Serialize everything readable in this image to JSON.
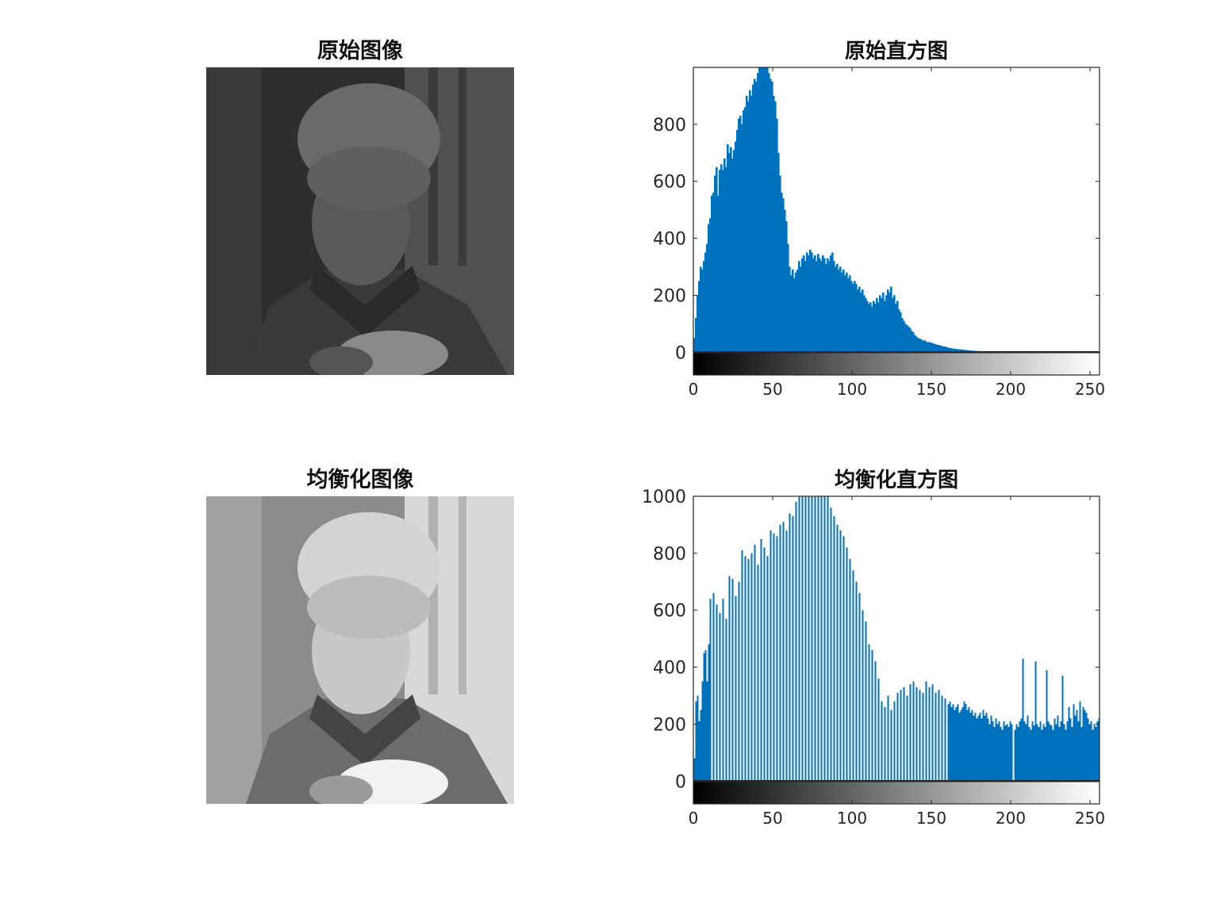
{
  "figure": {
    "panels": {
      "original_image": {
        "title": "原始图像",
        "content": "grayscale portrait, low contrast (dark)"
      },
      "original_histogram": {
        "title": "原始直方图"
      },
      "equalized_image": {
        "title": "均衡化图像",
        "content": "grayscale portrait, histogram equalized (high contrast)"
      },
      "equalized_histogram": {
        "title": "均衡化直方图"
      }
    }
  },
  "colors": {
    "bar": "#0072bd",
    "axis": "#262626",
    "background": "#ffffff"
  },
  "chart_data": [
    {
      "type": "bar",
      "title": "原始直方图",
      "xlabel": "",
      "ylabel": "",
      "xlim": [
        0,
        256
      ],
      "ylim": [
        -80,
        1000
      ],
      "yticks": [
        0,
        200,
        400,
        600,
        800
      ],
      "xticks": [
        0,
        50,
        100,
        150,
        200,
        250
      ],
      "grid": false,
      "colorbar": "grayscale gradient from black (0) to white (255) below the axis",
      "series": [
        {
          "values": [
            50,
            120,
            200,
            250,
            300,
            290,
            320,
            350,
            380,
            450,
            470,
            550,
            560,
            620,
            650,
            550,
            640,
            660,
            640,
            680,
            650,
            730,
            700,
            720,
            680,
            710,
            740,
            780,
            820,
            830,
            800,
            850,
            860,
            900,
            880,
            920,
            900,
            940,
            960,
            950,
            980,
            1000,
            1000,
            1000,
            1000,
            1000,
            1000,
            980,
            960,
            950,
            900,
            880,
            820,
            700,
            620,
            560,
            540,
            500,
            460,
            380,
            300,
            270,
            290,
            260,
            280,
            290,
            320,
            300,
            330,
            340,
            320,
            350,
            340,
            360,
            350,
            330,
            340,
            320,
            345,
            330,
            320,
            340,
            330,
            310,
            330,
            320,
            340,
            350,
            320,
            300,
            310,
            290,
            300,
            280,
            290,
            270,
            280,
            260,
            270,
            250,
            240,
            250,
            240,
            220,
            230,
            210,
            220,
            200,
            190,
            180,
            170,
            175,
            160,
            180,
            170,
            190,
            175,
            200,
            190,
            210,
            180,
            200,
            220,
            210,
            230,
            190,
            200,
            170,
            180,
            150,
            140,
            120,
            110,
            100,
            95,
            90,
            85,
            75,
            70,
            60,
            55,
            50,
            48,
            45,
            40,
            42,
            38,
            35,
            36,
            34,
            32,
            30,
            28,
            26,
            25,
            24,
            22,
            20,
            20,
            18,
            16,
            15,
            14,
            13,
            12,
            12,
            11,
            10,
            10,
            9,
            8,
            8,
            7,
            6,
            6,
            5,
            5,
            5,
            4,
            4,
            4,
            3,
            3,
            3,
            3,
            2,
            2,
            2,
            2,
            2,
            2,
            2,
            1,
            1,
            1,
            1,
            1,
            1,
            1,
            1,
            1,
            1,
            1,
            1,
            1,
            1,
            1,
            1,
            1,
            1,
            1,
            1,
            1,
            1,
            1,
            1,
            1,
            1,
            1,
            1,
            1,
            1,
            1,
            1,
            1,
            1,
            1,
            1,
            1,
            1,
            1,
            1,
            1,
            1,
            1,
            1,
            1,
            1,
            1,
            1,
            1,
            1,
            1,
            1,
            1,
            1,
            1,
            1,
            1,
            1,
            1,
            1,
            1,
            1,
            1,
            1
          ]
        }
      ]
    },
    {
      "type": "bar",
      "title": "均衡化直方图",
      "xlabel": "",
      "ylabel": "",
      "xlim": [
        0,
        256
      ],
      "ylim": [
        -80,
        1000
      ],
      "yticks": [
        0,
        200,
        400,
        600,
        800,
        1000
      ],
      "xticks": [
        0,
        50,
        100,
        150,
        200,
        250
      ],
      "grid": false,
      "colorbar": "grayscale gradient from black (0) to white (255) below the axis",
      "series": [
        {
          "x": [
            0,
            1,
            2,
            3,
            4,
            5,
            6,
            7,
            8,
            9,
            10,
            12,
            14,
            16,
            18,
            20,
            22,
            24,
            26,
            28,
            30,
            32,
            34,
            36,
            38,
            40,
            42,
            44,
            46,
            48,
            50,
            52,
            54,
            56,
            58,
            60,
            62,
            64,
            66,
            68,
            70,
            72,
            74,
            76,
            78,
            80,
            82,
            84,
            86,
            88,
            90,
            92,
            94,
            96,
            98,
            100,
            102,
            104,
            106,
            108,
            110,
            112,
            114,
            116,
            118,
            120,
            122,
            124,
            126,
            128,
            130,
            132,
            134,
            136,
            138,
            140,
            142,
            144,
            146,
            148,
            150,
            152,
            154,
            156,
            158,
            160,
            161,
            162,
            163,
            164,
            165,
            166,
            167,
            168,
            169,
            170,
            171,
            172,
            173,
            174,
            175,
            176,
            177,
            178,
            179,
            180,
            181,
            182,
            183,
            184,
            185,
            186,
            187,
            188,
            189,
            190,
            191,
            192,
            193,
            194,
            195,
            196,
            197,
            198,
            199,
            200,
            202,
            203,
            204,
            205,
            206,
            207,
            208,
            209,
            210,
            211,
            212,
            213,
            214,
            215,
            216,
            217,
            218,
            219,
            220,
            221,
            222,
            223,
            224,
            225,
            226,
            227,
            228,
            229,
            230,
            231,
            232,
            233,
            234,
            235,
            236,
            237,
            238,
            239,
            240,
            241,
            242,
            243,
            244,
            245,
            246,
            247,
            248,
            249,
            250,
            251,
            252,
            253,
            254,
            255
          ],
          "values": [
            80,
            280,
            300,
            210,
            250,
            350,
            450,
            460,
            350,
            480,
            640,
            660,
            620,
            590,
            640,
            570,
            720,
            710,
            650,
            700,
            810,
            790,
            780,
            800,
            830,
            760,
            850,
            820,
            790,
            880,
            870,
            860,
            900,
            910,
            880,
            940,
            930,
            980,
            1000,
            1000,
            1000,
            1000,
            1000,
            1000,
            1000,
            1000,
            1000,
            1000,
            960,
            930,
            900,
            880,
            860,
            820,
            780,
            740,
            700,
            660,
            600,
            560,
            480,
            460,
            420,
            360,
            280,
            260,
            300,
            250,
            280,
            310,
            320,
            330,
            300,
            340,
            350,
            330,
            320,
            310,
            350,
            330,
            340,
            310,
            320,
            300,
            290,
            270,
            280,
            260,
            270,
            250,
            260,
            270,
            240,
            250,
            260,
            280,
            270,
            250,
            260,
            240,
            250,
            230,
            240,
            220,
            230,
            240,
            220,
            250,
            230,
            240,
            220,
            200,
            230,
            210,
            190,
            220,
            200,
            210,
            190,
            180,
            210,
            195,
            200,
            190,
            210,
            200,
            180,
            200,
            190,
            210,
            220,
            430,
            210,
            200,
            230,
            190,
            180,
            210,
            195,
            420,
            200,
            190,
            210,
            180,
            200,
            190,
            390,
            210,
            200,
            195,
            180,
            220,
            200,
            230,
            190,
            210,
            370,
            200,
            180,
            210,
            260,
            220,
            190,
            270,
            230,
            250,
            210,
            280,
            190,
            260,
            250,
            240,
            220,
            200,
            210,
            180,
            200,
            190,
            210,
            220
          ]
        }
      ]
    }
  ]
}
